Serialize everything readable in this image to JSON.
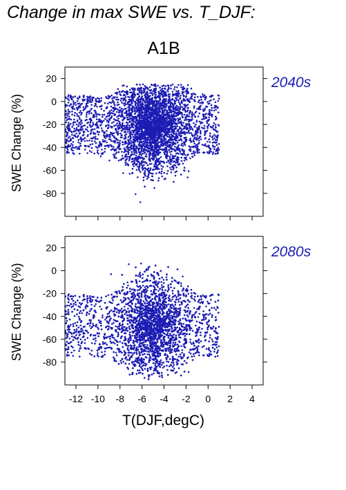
{
  "title": "Change in max SWE vs. T_DJF:",
  "scenario": "A1B",
  "xlabel": "T(DJF,degC)",
  "ylabel": "SWE Change (%)",
  "colors": {
    "points": "#1c1cb4",
    "period_label": "#1c1cb4",
    "axis": "#000000"
  },
  "chart_data": [
    {
      "type": "scatter",
      "period": "2040s",
      "xlabel": "",
      "ylabel": "SWE Change (%)",
      "xlim": [
        -13,
        5
      ],
      "ylim": [
        -100,
        30
      ],
      "xticks": [
        -12,
        -10,
        -8,
        -6,
        -4,
        -2,
        0,
        2,
        4
      ],
      "yticks": [
        20,
        0,
        -20,
        -40,
        -60,
        -80
      ],
      "show_xticklabels": false,
      "point_count_approx": 4000,
      "cloud": {
        "x_range": [
          -13,
          1
        ],
        "y_range": [
          -88,
          15
        ],
        "center_x": -5,
        "center_y": -20
      },
      "grid": false,
      "legend": "none"
    },
    {
      "type": "scatter",
      "period": "2080s",
      "xlabel": "T(DJF,degC)",
      "ylabel": "SWE Change (%)",
      "xlim": [
        -13,
        5
      ],
      "ylim": [
        -100,
        30
      ],
      "xticks": [
        -12,
        -10,
        -8,
        -6,
        -4,
        -2,
        0,
        2,
        4
      ],
      "xticklabels": [
        "-12",
        "-10",
        "-8",
        "-6",
        "-4",
        "-2",
        "0",
        "2",
        "4"
      ],
      "yticks": [
        20,
        0,
        -20,
        -40,
        -60,
        -80
      ],
      "show_xticklabels": true,
      "point_count_approx": 4000,
      "cloud": {
        "x_range": [
          -13,
          1
        ],
        "y_range": [
          -95,
          15
        ],
        "center_x": -5,
        "center_y": -48
      },
      "grid": false,
      "legend": "none"
    }
  ]
}
